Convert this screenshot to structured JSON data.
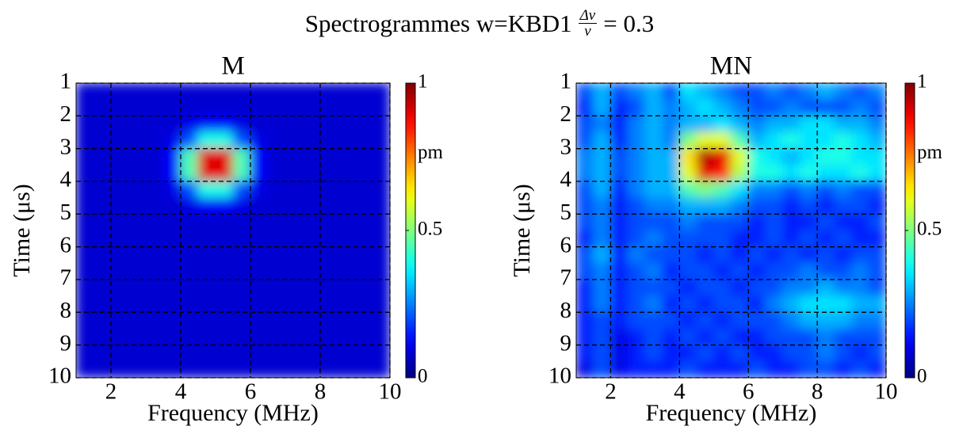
{
  "figure_title": {
    "text": "Spectrogrammes w=KBD1",
    "frac_num": "Δν",
    "frac_den": "ν",
    "suffix": "= 0.3"
  },
  "chart_data": [
    {
      "type": "heatmap",
      "title": "M",
      "xlabel": "Frequency (MHz)",
      "ylabel": "Time (μs)",
      "colormap": "jet",
      "grid": true,
      "xlim": [
        1,
        10
      ],
      "ylim": [
        10,
        1
      ],
      "xticks": [
        2,
        4,
        6,
        8,
        10
      ],
      "yticks": [
        1,
        2,
        3,
        4,
        5,
        6,
        7,
        8,
        9,
        10
      ],
      "clim": [
        0,
        1
      ],
      "cticks": [
        0,
        0.5,
        1
      ],
      "colorbar_label": "pm",
      "x": [
        1.25,
        1.75,
        2.25,
        2.75,
        3.25,
        3.75,
        4.25,
        4.75,
        5.25,
        5.75,
        6.25,
        6.75,
        7.25,
        7.75,
        8.25,
        8.75,
        9.25,
        9.75
      ],
      "y": [
        1.25,
        1.75,
        2.25,
        2.75,
        3.25,
        3.75,
        4.25,
        4.75,
        5.25,
        5.75,
        6.25,
        6.75,
        7.25,
        7.75,
        8.25,
        8.75,
        9.25,
        9.75
      ],
      "z": [
        [
          0.08,
          0.08,
          0.08,
          0.08,
          0.08,
          0.08,
          0.08,
          0.08,
          0.08,
          0.08,
          0.08,
          0.08,
          0.08,
          0.08,
          0.08,
          0.08,
          0.08,
          0.08
        ],
        [
          0.08,
          0.08,
          0.08,
          0.08,
          0.08,
          0.08,
          0.08,
          0.08,
          0.08,
          0.08,
          0.08,
          0.08,
          0.08,
          0.08,
          0.08,
          0.08,
          0.08,
          0.08
        ],
        [
          0.08,
          0.08,
          0.08,
          0.08,
          0.08,
          0.08,
          0.1,
          0.12,
          0.12,
          0.1,
          0.08,
          0.08,
          0.08,
          0.08,
          0.08,
          0.08,
          0.08,
          0.08
        ],
        [
          0.08,
          0.08,
          0.08,
          0.08,
          0.08,
          0.1,
          0.2,
          0.4,
          0.4,
          0.2,
          0.1,
          0.08,
          0.08,
          0.08,
          0.08,
          0.08,
          0.08,
          0.08
        ],
        [
          0.08,
          0.08,
          0.08,
          0.08,
          0.08,
          0.12,
          0.45,
          0.9,
          0.9,
          0.45,
          0.12,
          0.08,
          0.08,
          0.08,
          0.08,
          0.08,
          0.08,
          0.08
        ],
        [
          0.08,
          0.08,
          0.08,
          0.08,
          0.08,
          0.12,
          0.45,
          0.9,
          0.9,
          0.45,
          0.12,
          0.08,
          0.08,
          0.08,
          0.08,
          0.08,
          0.08,
          0.08
        ],
        [
          0.08,
          0.08,
          0.08,
          0.08,
          0.08,
          0.1,
          0.2,
          0.4,
          0.4,
          0.2,
          0.1,
          0.08,
          0.08,
          0.08,
          0.08,
          0.08,
          0.08,
          0.08
        ],
        [
          0.08,
          0.08,
          0.08,
          0.08,
          0.08,
          0.08,
          0.1,
          0.12,
          0.12,
          0.1,
          0.08,
          0.08,
          0.08,
          0.08,
          0.08,
          0.08,
          0.08,
          0.08
        ],
        [
          0.08,
          0.08,
          0.08,
          0.08,
          0.08,
          0.08,
          0.08,
          0.08,
          0.08,
          0.08,
          0.08,
          0.08,
          0.08,
          0.08,
          0.08,
          0.08,
          0.08,
          0.08
        ],
        [
          0.08,
          0.08,
          0.08,
          0.08,
          0.08,
          0.08,
          0.08,
          0.08,
          0.08,
          0.08,
          0.08,
          0.08,
          0.08,
          0.08,
          0.08,
          0.08,
          0.08,
          0.08
        ],
        [
          0.08,
          0.08,
          0.08,
          0.08,
          0.08,
          0.08,
          0.08,
          0.08,
          0.08,
          0.08,
          0.08,
          0.08,
          0.08,
          0.08,
          0.08,
          0.08,
          0.08,
          0.08
        ],
        [
          0.08,
          0.08,
          0.08,
          0.08,
          0.08,
          0.08,
          0.08,
          0.08,
          0.08,
          0.08,
          0.08,
          0.08,
          0.08,
          0.08,
          0.08,
          0.08,
          0.08,
          0.08
        ],
        [
          0.08,
          0.08,
          0.08,
          0.08,
          0.08,
          0.08,
          0.08,
          0.08,
          0.08,
          0.08,
          0.08,
          0.08,
          0.08,
          0.08,
          0.08,
          0.08,
          0.08,
          0.08
        ],
        [
          0.08,
          0.08,
          0.08,
          0.08,
          0.08,
          0.08,
          0.08,
          0.08,
          0.08,
          0.08,
          0.08,
          0.08,
          0.08,
          0.08,
          0.08,
          0.08,
          0.08,
          0.08
        ],
        [
          0.08,
          0.08,
          0.08,
          0.08,
          0.08,
          0.08,
          0.08,
          0.08,
          0.08,
          0.08,
          0.08,
          0.08,
          0.08,
          0.08,
          0.08,
          0.08,
          0.08,
          0.08
        ],
        [
          0.08,
          0.08,
          0.08,
          0.08,
          0.08,
          0.08,
          0.08,
          0.08,
          0.08,
          0.08,
          0.08,
          0.08,
          0.08,
          0.08,
          0.08,
          0.08,
          0.08,
          0.08
        ],
        [
          0.08,
          0.08,
          0.08,
          0.08,
          0.08,
          0.08,
          0.08,
          0.08,
          0.08,
          0.08,
          0.08,
          0.08,
          0.08,
          0.08,
          0.08,
          0.08,
          0.08,
          0.08
        ],
        [
          0.08,
          0.08,
          0.08,
          0.08,
          0.08,
          0.08,
          0.08,
          0.08,
          0.08,
          0.08,
          0.08,
          0.08,
          0.08,
          0.08,
          0.08,
          0.08,
          0.08,
          0.08
        ]
      ]
    },
    {
      "type": "heatmap",
      "title": "MN",
      "xlabel": "Frequency (MHz)",
      "ylabel": "Time (μs)",
      "colormap": "jet",
      "grid": true,
      "xlim": [
        1,
        10
      ],
      "ylim": [
        10,
        1
      ],
      "xticks": [
        2,
        4,
        6,
        8,
        10
      ],
      "yticks": [
        1,
        2,
        3,
        4,
        5,
        6,
        7,
        8,
        9,
        10
      ],
      "clim": [
        0,
        1
      ],
      "cticks": [
        0,
        0.5,
        1
      ],
      "colorbar_label": "pm",
      "x": [
        1.25,
        1.75,
        2.25,
        2.75,
        3.25,
        3.75,
        4.25,
        4.75,
        5.25,
        5.75,
        6.25,
        6.75,
        7.25,
        7.75,
        8.25,
        8.75,
        9.25,
        9.75
      ],
      "y": [
        1.25,
        1.75,
        2.25,
        2.75,
        3.25,
        3.75,
        4.25,
        4.75,
        5.25,
        5.75,
        6.25,
        6.75,
        7.25,
        7.75,
        8.25,
        8.75,
        9.25,
        9.75
      ],
      "z": [
        [
          0.2,
          0.3,
          0.2,
          0.25,
          0.3,
          0.2,
          0.35,
          0.3,
          0.25,
          0.2,
          0.2,
          0.25,
          0.2,
          0.25,
          0.3,
          0.25,
          0.2,
          0.25
        ],
        [
          0.15,
          0.3,
          0.15,
          0.2,
          0.3,
          0.25,
          0.3,
          0.35,
          0.3,
          0.25,
          0.2,
          0.2,
          0.25,
          0.2,
          0.2,
          0.2,
          0.25,
          0.2
        ],
        [
          0.2,
          0.25,
          0.15,
          0.25,
          0.3,
          0.25,
          0.3,
          0.3,
          0.35,
          0.3,
          0.25,
          0.3,
          0.3,
          0.35,
          0.35,
          0.3,
          0.3,
          0.25
        ],
        [
          0.2,
          0.3,
          0.15,
          0.25,
          0.3,
          0.25,
          0.5,
          0.6,
          0.6,
          0.45,
          0.3,
          0.35,
          0.4,
          0.35,
          0.35,
          0.4,
          0.35,
          0.3
        ],
        [
          0.25,
          0.3,
          0.2,
          0.25,
          0.3,
          0.3,
          0.65,
          0.95,
          0.9,
          0.6,
          0.4,
          0.35,
          0.3,
          0.35,
          0.4,
          0.4,
          0.35,
          0.35
        ],
        [
          0.25,
          0.3,
          0.2,
          0.25,
          0.3,
          0.3,
          0.6,
          0.9,
          0.85,
          0.55,
          0.4,
          0.4,
          0.35,
          0.4,
          0.35,
          0.35,
          0.4,
          0.35
        ],
        [
          0.2,
          0.3,
          0.15,
          0.25,
          0.3,
          0.3,
          0.45,
          0.5,
          0.45,
          0.35,
          0.25,
          0.25,
          0.2,
          0.25,
          0.2,
          0.25,
          0.2,
          0.2
        ],
        [
          0.2,
          0.25,
          0.15,
          0.2,
          0.25,
          0.25,
          0.3,
          0.3,
          0.3,
          0.25,
          0.2,
          0.2,
          0.15,
          0.2,
          0.15,
          0.2,
          0.2,
          0.15
        ],
        [
          0.2,
          0.25,
          0.15,
          0.2,
          0.2,
          0.2,
          0.25,
          0.2,
          0.2,
          0.2,
          0.15,
          0.2,
          0.15,
          0.15,
          0.2,
          0.15,
          0.15,
          0.2
        ],
        [
          0.15,
          0.25,
          0.15,
          0.2,
          0.25,
          0.2,
          0.2,
          0.2,
          0.2,
          0.15,
          0.15,
          0.2,
          0.15,
          0.2,
          0.15,
          0.2,
          0.15,
          0.15
        ],
        [
          0.2,
          0.3,
          0.15,
          0.25,
          0.2,
          0.2,
          0.2,
          0.15,
          0.2,
          0.15,
          0.2,
          0.15,
          0.2,
          0.15,
          0.2,
          0.15,
          0.2,
          0.2
        ],
        [
          0.2,
          0.25,
          0.15,
          0.2,
          0.25,
          0.15,
          0.2,
          0.2,
          0.15,
          0.2,
          0.15,
          0.2,
          0.2,
          0.25,
          0.2,
          0.2,
          0.25,
          0.2
        ],
        [
          0.15,
          0.25,
          0.15,
          0.2,
          0.2,
          0.2,
          0.15,
          0.2,
          0.2,
          0.15,
          0.2,
          0.2,
          0.25,
          0.25,
          0.3,
          0.25,
          0.25,
          0.2
        ],
        [
          0.15,
          0.25,
          0.15,
          0.2,
          0.25,
          0.15,
          0.2,
          0.15,
          0.2,
          0.2,
          0.15,
          0.25,
          0.3,
          0.35,
          0.35,
          0.35,
          0.3,
          0.3
        ],
        [
          0.15,
          0.2,
          0.15,
          0.2,
          0.2,
          0.2,
          0.15,
          0.2,
          0.15,
          0.2,
          0.2,
          0.2,
          0.25,
          0.3,
          0.3,
          0.3,
          0.25,
          0.25
        ],
        [
          0.15,
          0.2,
          0.1,
          0.15,
          0.2,
          0.15,
          0.2,
          0.15,
          0.2,
          0.15,
          0.15,
          0.2,
          0.2,
          0.2,
          0.25,
          0.2,
          0.2,
          0.2
        ],
        [
          0.15,
          0.2,
          0.1,
          0.15,
          0.2,
          0.15,
          0.15,
          0.2,
          0.15,
          0.2,
          0.15,
          0.15,
          0.2,
          0.2,
          0.25,
          0.2,
          0.15,
          0.2
        ],
        [
          0.1,
          0.2,
          0.1,
          0.15,
          0.15,
          0.15,
          0.2,
          0.15,
          0.15,
          0.15,
          0.2,
          0.15,
          0.15,
          0.2,
          0.2,
          0.15,
          0.2,
          0.15
        ]
      ]
    }
  ]
}
